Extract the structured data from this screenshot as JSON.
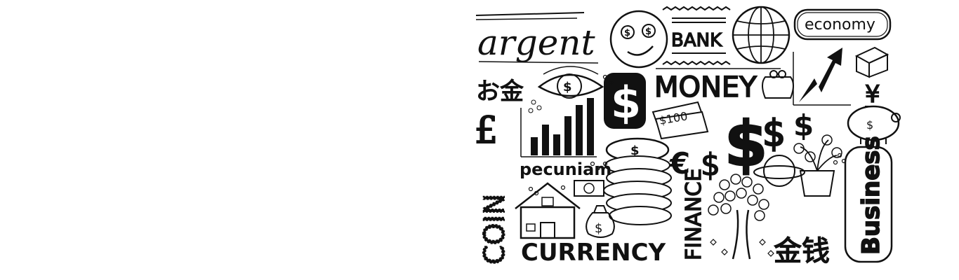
{
  "doodle": {
    "words": {
      "argent": "argent",
      "bank": "BANK",
      "economy": "economy",
      "money": "MONEY",
      "okane": "お金",
      "hundred": "$100",
      "pecuniam": "pecuniam",
      "coin": "COIN",
      "currency": "CURRENCY",
      "finance": "FINANCE",
      "business": "Business",
      "jinqian": "金钱",
      "yen": "¥",
      "pound": "£",
      "euro": "€",
      "dollar": "$"
    },
    "colors": {
      "ink": "#111111",
      "paper": "#ffffff"
    },
    "icons": [
      "smiley-icon",
      "globe-icon",
      "rising-arrow-icon",
      "box-icon",
      "eye-icon",
      "bar-chart-icon",
      "banknotes-icon",
      "purse-icon",
      "piggy-bank-icon",
      "coin-stack-icon",
      "house-icon",
      "money-bag-icon",
      "money-tree-icon",
      "potted-plant-icon",
      "planet-icon"
    ]
  }
}
